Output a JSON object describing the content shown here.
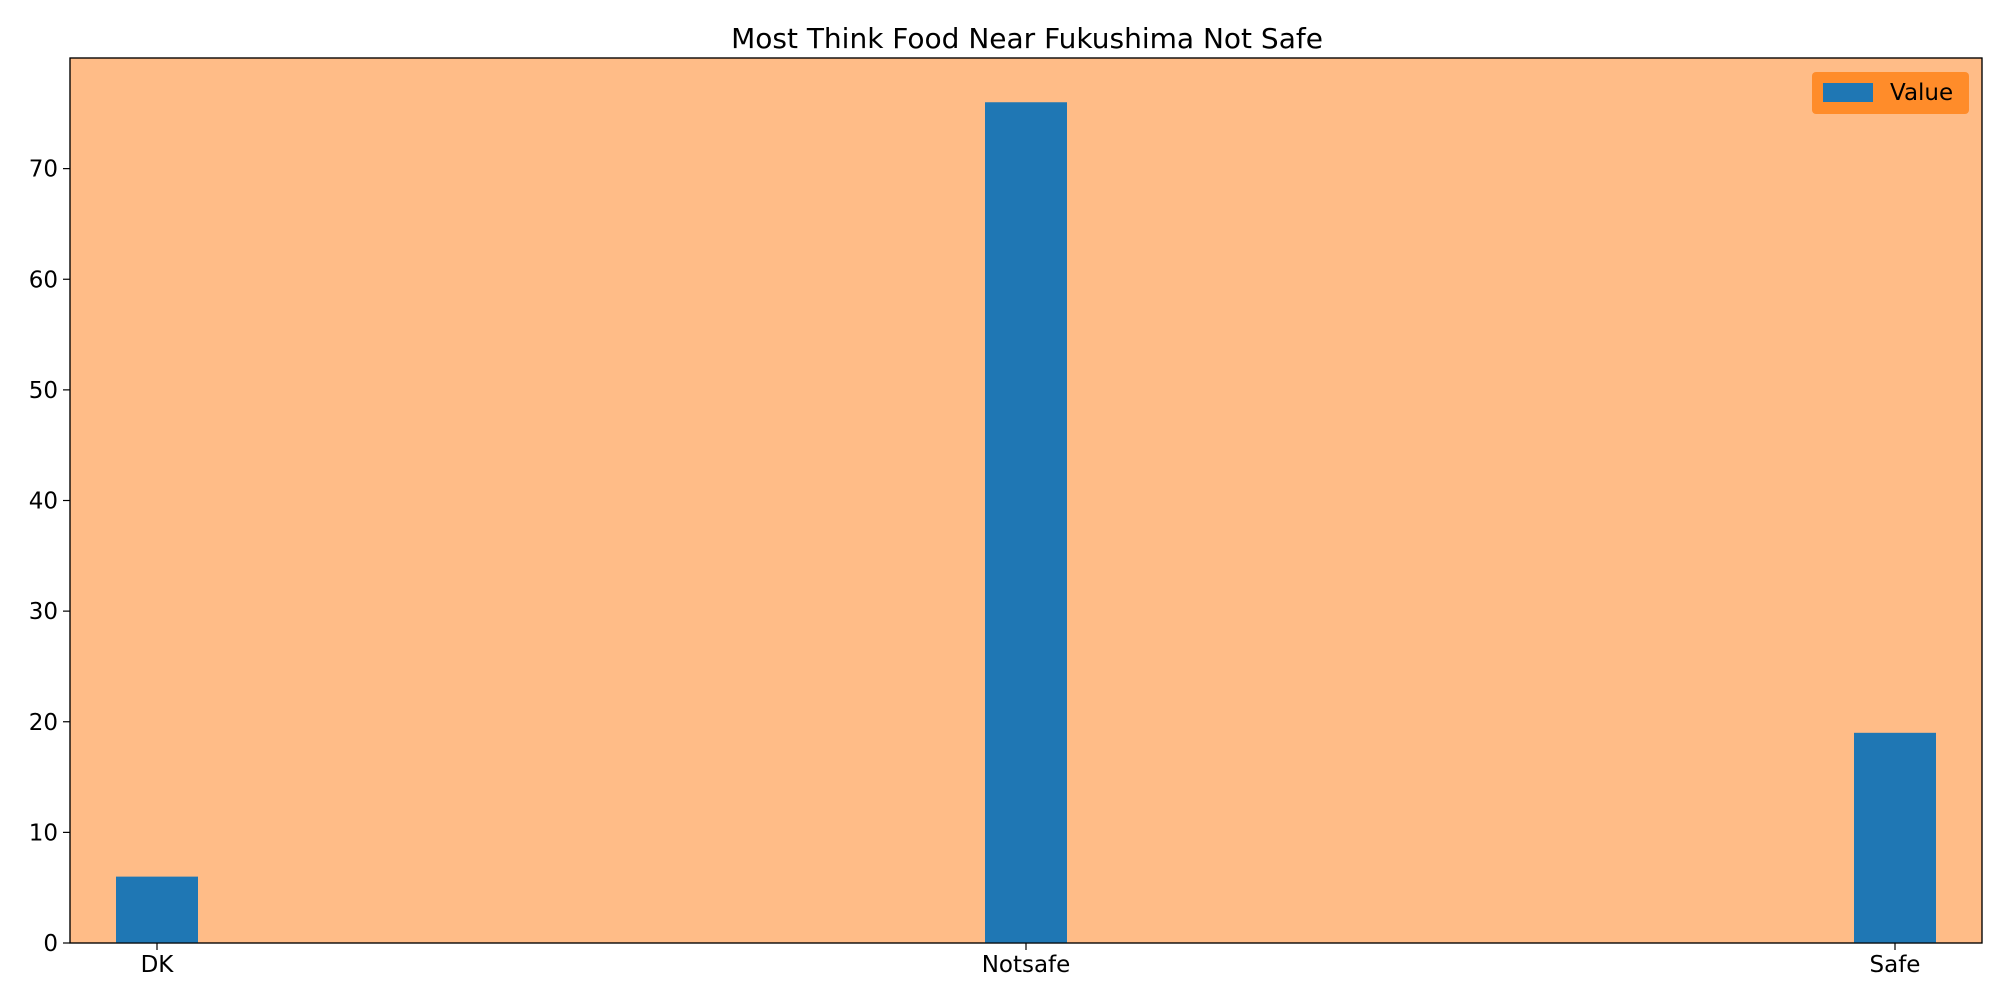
{
  "chart_data": {
    "type": "bar",
    "title": "Most Think Food Near Fukushima Not Safe",
    "categories": [
      "DK",
      "Notsafe",
      "Safe"
    ],
    "series": [
      {
        "name": "Value",
        "values": [
          6,
          76,
          19
        ]
      }
    ],
    "xlabel": "",
    "ylabel": "",
    "ylim": [
      0,
      80
    ],
    "yticks": [
      "0",
      "10",
      "20",
      "30",
      "40",
      "50",
      "60",
      "70"
    ],
    "grid": false,
    "legend_position": "top-right",
    "colors": {
      "plot_background": "#ffbc87",
      "bar": "#1f77b4",
      "legend_background": "#ff8c2a"
    }
  }
}
